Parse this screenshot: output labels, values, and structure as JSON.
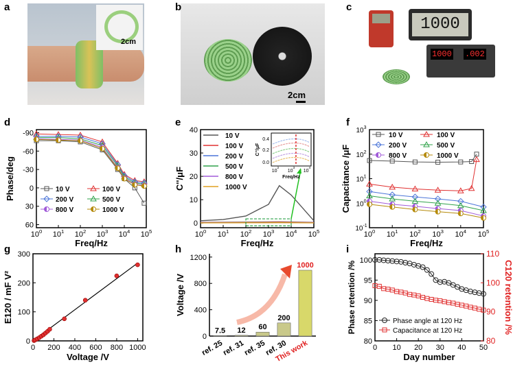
{
  "panel_letters": [
    "a",
    "b",
    "c",
    "d",
    "e",
    "f",
    "g",
    "h",
    "i"
  ],
  "photos": {
    "a": {
      "scale_label": "2cm"
    },
    "b": {
      "scale_label": "2cm"
    },
    "c": {
      "meter_reading": "1000",
      "supply_left": "1000",
      "supply_right": ".002"
    }
  },
  "chart_data": [
    {
      "panel": "d",
      "type": "line",
      "xlabel": "Freq/Hz",
      "ylabel": "Phase/deg",
      "xscale": "log",
      "xlim": [
        1,
        100000
      ],
      "ylim": [
        -95,
        65
      ],
      "y_inverted": true,
      "xticks": [
        "10^0",
        "10^1",
        "10^2",
        "10^3",
        "10^4",
        "10^5"
      ],
      "yticks": [
        "-90",
        "-60",
        "-30",
        "0",
        "30",
        "60"
      ],
      "legend_position": "bottom",
      "series": [
        {
          "name": "10 V",
          "color": "#555555",
          "marker": "square",
          "x": [
            1,
            10,
            100,
            1000,
            5000,
            10000,
            30000,
            80000
          ],
          "y": [
            -77,
            -77,
            -75,
            -62,
            -30,
            -15,
            0,
            25
          ]
        },
        {
          "name": "100 V",
          "color": "#e03030",
          "marker": "triangle",
          "x": [
            1,
            10,
            100,
            1000,
            5000,
            10000,
            30000,
            80000
          ],
          "y": [
            -88,
            -87,
            -86,
            -75,
            -40,
            -22,
            -12,
            -10
          ]
        },
        {
          "name": "200 V",
          "color": "#4a74d8",
          "marker": "diamond",
          "x": [
            1,
            10,
            100,
            1000,
            5000,
            10000,
            30000,
            80000
          ],
          "y": [
            -84,
            -84,
            -83,
            -72,
            -38,
            -20,
            -10,
            -8
          ]
        },
        {
          "name": "500 V",
          "color": "#2fa24a",
          "marker": "triangle",
          "x": [
            1,
            10,
            100,
            1000,
            5000,
            10000,
            30000,
            80000
          ],
          "y": [
            -82,
            -82,
            -80,
            -69,
            -36,
            -18,
            -8,
            -6
          ]
        },
        {
          "name": "800 V",
          "color": "#a05ad8",
          "marker": "half-circle",
          "x": [
            1,
            10,
            100,
            1000,
            5000,
            10000,
            30000,
            80000
          ],
          "y": [
            -80,
            -79,
            -78,
            -66,
            -33,
            -16,
            -6,
            -4
          ]
        },
        {
          "name": "1000 V",
          "color": "#b58a0a",
          "marker": "half-circle",
          "x": [
            1,
            10,
            100,
            1000,
            5000,
            10000,
            30000,
            80000
          ],
          "y": [
            -79,
            -78,
            -77,
            -64,
            -32,
            -15,
            -5,
            -3
          ]
        }
      ]
    },
    {
      "panel": "e",
      "type": "line",
      "xlabel": "Freq/Hz",
      "ylabel": "C''/μF",
      "xscale": "log",
      "xlim": [
        1,
        100000
      ],
      "ylim": [
        -2,
        40
      ],
      "xticks": [
        "10^0",
        "10^1",
        "10^2",
        "10^3",
        "10^4",
        "10^5"
      ],
      "yticks": [
        "0",
        "10",
        "20",
        "30",
        "40"
      ],
      "legend_position": "top-left",
      "series": [
        {
          "name": "10 V",
          "color": "#555555",
          "x": [
            1,
            10,
            100,
            1000,
            3000,
            10000,
            100000
          ],
          "y": [
            1,
            1.5,
            3,
            8,
            16,
            12,
            1
          ]
        },
        {
          "name": "100 V",
          "color": "#e03030",
          "x": [
            1,
            100,
            3000,
            100000
          ],
          "y": [
            0.3,
            0.4,
            0.5,
            0.3
          ]
        },
        {
          "name": "200 V",
          "color": "#4a74d8",
          "x": [
            1,
            100,
            3000,
            100000
          ],
          "y": [
            0.2,
            0.25,
            0.3,
            0.2
          ]
        },
        {
          "name": "500 V",
          "color": "#2fa24a",
          "x": [
            1,
            100,
            3000,
            100000
          ],
          "y": [
            0.15,
            0.2,
            0.25,
            0.15
          ]
        },
        {
          "name": "800 V",
          "color": "#a05ad8",
          "x": [
            1,
            100,
            3000,
            100000
          ],
          "y": [
            0.1,
            0.12,
            0.18,
            0.1
          ]
        },
        {
          "name": "1000 V",
          "color": "#e0a020",
          "x": [
            1,
            100,
            3000,
            100000
          ],
          "y": [
            0.08,
            0.1,
            0.15,
            0.08
          ]
        }
      ],
      "inset": {
        "ylabel": "C''/μF",
        "yticks": [
          "0.0",
          "0.2",
          "0.4"
        ],
        "xticks": [
          "10^2",
          "10^3",
          "10^4"
        ],
        "xlabel": "Freq/Hz"
      }
    },
    {
      "panel": "f",
      "type": "line",
      "xlabel": "Freq/Hz",
      "ylabel": "Capacitance /μF",
      "xscale": "log",
      "yscale": "log",
      "xlim": [
        1,
        100000
      ],
      "ylim": [
        0.1,
        1000
      ],
      "xticks": [
        "10^0",
        "10^1",
        "10^2",
        "10^3",
        "10^4",
        "10^5"
      ],
      "yticks": [
        "10^-1",
        "10^0",
        "10^1",
        "10^2",
        "10^3"
      ],
      "legend_position": "top-left",
      "series": [
        {
          "name": "10 V",
          "color": "#555555",
          "marker": "square",
          "x": [
            1,
            10,
            100,
            1000,
            10000,
            30000,
            50000
          ],
          "y": [
            55,
            52,
            48,
            47,
            48,
            50,
            100
          ]
        },
        {
          "name": "100 V",
          "color": "#e03030",
          "marker": "triangle",
          "x": [
            1,
            10,
            100,
            1000,
            10000,
            30000,
            50000
          ],
          "y": [
            6,
            4.5,
            3.8,
            3.4,
            3.2,
            4,
            60
          ]
        },
        {
          "name": "200 V",
          "color": "#4a74d8",
          "marker": "diamond",
          "x": [
            1,
            10,
            100,
            1000,
            10000,
            100000
          ],
          "y": [
            3,
            2.2,
            1.8,
            1.5,
            1.2,
            0.7
          ]
        },
        {
          "name": "500 V",
          "color": "#2fa24a",
          "marker": "triangle",
          "x": [
            1,
            10,
            100,
            1000,
            10000,
            100000
          ],
          "y": [
            2,
            1.5,
            1.2,
            1,
            0.8,
            0.5
          ]
        },
        {
          "name": "800 V",
          "color": "#a05ad8",
          "marker": "half-circle",
          "x": [
            1,
            10,
            100,
            1000,
            10000,
            100000
          ],
          "y": [
            1.2,
            0.9,
            0.75,
            0.6,
            0.5,
            0.3
          ]
        },
        {
          "name": "1000 V",
          "color": "#b58a0a",
          "marker": "half-circle",
          "x": [
            1,
            10,
            100,
            1000,
            10000,
            100000
          ],
          "y": [
            0.9,
            0.7,
            0.55,
            0.45,
            0.38,
            0.25
          ]
        }
      ]
    },
    {
      "panel": "g",
      "type": "scatter",
      "xlabel": "Voltage /V",
      "ylabel": "E120 / mF V²",
      "xlim": [
        0,
        1050
      ],
      "ylim": [
        0,
        300
      ],
      "xticks": [
        "0",
        "200",
        "400",
        "600",
        "800",
        "1000"
      ],
      "yticks": [
        "0",
        "100",
        "200",
        "300"
      ],
      "points": {
        "x": [
          10,
          20,
          40,
          60,
          80,
          100,
          120,
          140,
          160,
          300,
          500,
          800,
          1000
        ],
        "y": [
          1,
          3,
          7,
          11,
          16,
          21,
          27,
          33,
          40,
          76,
          140,
          224,
          262
        ]
      },
      "fit": {
        "x": [
          0,
          1000
        ],
        "y": [
          0,
          268
        ]
      }
    },
    {
      "panel": "h",
      "type": "bar",
      "ylabel": "Voltage /V",
      "ylim": [
        0,
        1250
      ],
      "yticks": [
        "0",
        "400",
        "800",
        "1200"
      ],
      "categories": [
        "ref. 25",
        "ref. 31",
        "ref. 35",
        "ref. 30",
        "This work"
      ],
      "values": [
        7.5,
        12,
        60,
        200,
        1000
      ],
      "value_labels": [
        "7.5",
        "12",
        "60",
        "200",
        "1000"
      ],
      "highlight_color": "#e02020"
    },
    {
      "panel": "i",
      "type": "line",
      "xlabel": "Day number",
      "ylabel": "Phase retention /%",
      "y2label": "C120 retention /%",
      "xlim": [
        0,
        50
      ],
      "ylim": [
        80,
        101.5
      ],
      "y2lim": [
        80,
        110
      ],
      "xticks": [
        "0",
        "10",
        "20",
        "30",
        "40",
        "50"
      ],
      "yticks": [
        "80",
        "85",
        "90",
        "95",
        "100"
      ],
      "y2ticks": [
        "80",
        "90",
        "100",
        "110"
      ],
      "legend_position": "bottom-left",
      "series": [
        {
          "name": "Phase angle at 120 Hz",
          "axis": "left",
          "color": "#222222",
          "marker": "circle",
          "x": [
            0,
            2,
            4,
            6,
            8,
            10,
            12,
            14,
            16,
            18,
            20,
            22,
            24,
            26,
            28,
            30,
            32,
            34,
            36,
            38,
            40,
            42,
            44,
            46,
            48,
            50
          ],
          "y": [
            100,
            100,
            99.9,
            99.8,
            99.7,
            99.6,
            99.5,
            99.3,
            99.1,
            98.8,
            98.5,
            98.2,
            97.5,
            96.5,
            95,
            94.5,
            94.6,
            94.3,
            93.8,
            93.3,
            92.8,
            92.5,
            92.2,
            92,
            91.8,
            91.6
          ]
        },
        {
          "name": "Capacitance at 120 Hz",
          "axis": "right",
          "color": "#e03030",
          "marker": "square",
          "x": [
            0,
            2,
            4,
            6,
            8,
            10,
            12,
            14,
            16,
            18,
            20,
            22,
            24,
            26,
            28,
            30,
            32,
            34,
            36,
            38,
            40,
            42,
            44,
            46,
            48,
            50
          ],
          "y": [
            99,
            98.8,
            98,
            97.8,
            97.5,
            97,
            96.8,
            96.5,
            96,
            95.8,
            95.5,
            95,
            94.6,
            94.3,
            94,
            93.8,
            93.5,
            93.2,
            93,
            92.6,
            92.3,
            92,
            91.6,
            91.3,
            90.9,
            90.6
          ]
        }
      ]
    }
  ]
}
